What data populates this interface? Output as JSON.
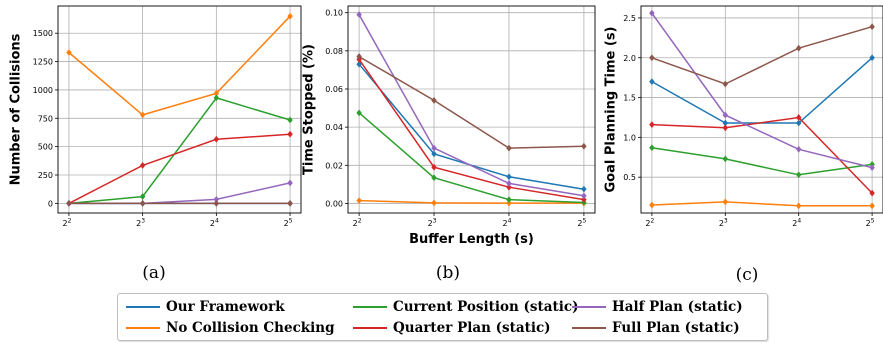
{
  "chart_data": [
    {
      "type": "line",
      "panel_label": "(a)",
      "xlabel": "",
      "ylabel": "Number of Collisions",
      "x_tick_labels": [
        [
          "2",
          "2"
        ],
        [
          "2",
          "3"
        ],
        [
          "2",
          "4"
        ],
        [
          "2",
          "5"
        ]
      ],
      "y_ticks": [
        0,
        250,
        500,
        750,
        1000,
        1250,
        1500
      ],
      "y_tick_labels": [
        "0",
        "250",
        "500",
        "750",
        "1000",
        "1250",
        "1500"
      ],
      "ylim": [
        -85,
        1740
      ],
      "grid": true,
      "series": [
        {
          "name": "Our Framework",
          "color": "#1f77b4",
          "values": [
            0,
            0,
            0,
            0
          ]
        },
        {
          "name": "No Collision Checking",
          "color": "#ff7f0e",
          "values": [
            1330,
            780,
            970,
            1650
          ]
        },
        {
          "name": "Current Position (static)",
          "color": "#2ca02c",
          "values": [
            0,
            60,
            930,
            735
          ]
        },
        {
          "name": "Quarter Plan (static)",
          "color": "#d62728",
          "values": [
            0,
            335,
            565,
            610
          ]
        },
        {
          "name": "Half Plan (static)",
          "color": "#9467bd",
          "values": [
            0,
            0,
            35,
            180
          ]
        },
        {
          "name": "Full Plan (static)",
          "color": "#8c564b",
          "values": [
            0,
            0,
            0,
            0
          ]
        }
      ]
    },
    {
      "type": "line",
      "panel_label": "(b)",
      "xlabel": "Buffer Length (s)",
      "ylabel": "Time Stopped (%)",
      "x_tick_labels": [
        [
          "2",
          "2"
        ],
        [
          "2",
          "3"
        ],
        [
          "2",
          "4"
        ],
        [
          "2",
          "5"
        ]
      ],
      "y_ticks": [
        0,
        0.02,
        0.04,
        0.06,
        0.08,
        0.1
      ],
      "y_tick_labels": [
        "0.00",
        "0.02",
        "0.04",
        "0.06",
        "0.08",
        "0.10"
      ],
      "ylim": [
        -0.005,
        0.1035
      ],
      "grid": true,
      "series": [
        {
          "name": "Our Framework",
          "color": "#1f77b4",
          "values": [
            0.073,
            0.026,
            0.014,
            0.0075
          ]
        },
        {
          "name": "No Collision Checking",
          "color": "#ff7f0e",
          "values": [
            0.0015,
            0.0003,
            0.0002,
            0.0002
          ]
        },
        {
          "name": "Current Position (static)",
          "color": "#2ca02c",
          "values": [
            0.0475,
            0.0135,
            0.002,
            0.0005
          ]
        },
        {
          "name": "Quarter Plan (static)",
          "color": "#d62728",
          "values": [
            0.0755,
            0.019,
            0.0085,
            0.002
          ]
        },
        {
          "name": "Half Plan (static)",
          "color": "#9467bd",
          "values": [
            0.099,
            0.029,
            0.0105,
            0.004
          ]
        },
        {
          "name": "Full Plan (static)",
          "color": "#8c564b",
          "values": [
            0.077,
            0.054,
            0.029,
            0.03
          ]
        }
      ]
    },
    {
      "type": "line",
      "panel_label": "(c)",
      "xlabel": "",
      "ylabel": "Goal Planning Time (s)",
      "x_tick_labels": [
        [
          "2",
          "2"
        ],
        [
          "2",
          "3"
        ],
        [
          "2",
          "4"
        ],
        [
          "2",
          "5"
        ]
      ],
      "y_ticks": [
        0.5,
        1.0,
        1.5,
        2.0,
        2.5
      ],
      "y_tick_labels": [
        "0.5",
        "1.0",
        "1.5",
        "2.0",
        "2.5"
      ],
      "ylim": [
        0.05,
        2.65
      ],
      "grid": true,
      "series": [
        {
          "name": "Our Framework",
          "color": "#1f77b4",
          "values": [
            1.7,
            1.18,
            1.18,
            2.0
          ]
        },
        {
          "name": "No Collision Checking",
          "color": "#ff7f0e",
          "values": [
            0.15,
            0.19,
            0.14,
            0.14
          ]
        },
        {
          "name": "Current Position (static)",
          "color": "#2ca02c",
          "values": [
            0.87,
            0.73,
            0.53,
            0.66
          ]
        },
        {
          "name": "Quarter Plan (static)",
          "color": "#d62728",
          "values": [
            1.16,
            1.12,
            1.25,
            0.3
          ]
        },
        {
          "name": "Half Plan (static)",
          "color": "#9467bd",
          "values": [
            2.56,
            1.28,
            0.85,
            0.62
          ]
        },
        {
          "name": "Full Plan (static)",
          "color": "#8c564b",
          "values": [
            2.0,
            1.67,
            2.12,
            2.39
          ]
        }
      ]
    }
  ],
  "legend": {
    "items": [
      {
        "label": "Our Framework",
        "color": "#1f77b4"
      },
      {
        "label": "Current Position (static)",
        "color": "#2ca02c"
      },
      {
        "label": "Half Plan (static)",
        "color": "#9467bd"
      },
      {
        "label": "No Collision Checking",
        "color": "#ff7f0e"
      },
      {
        "label": "Quarter Plan (static)",
        "color": "#d62728"
      },
      {
        "label": "Full Plan (static)",
        "color": "#8c564b"
      }
    ]
  }
}
